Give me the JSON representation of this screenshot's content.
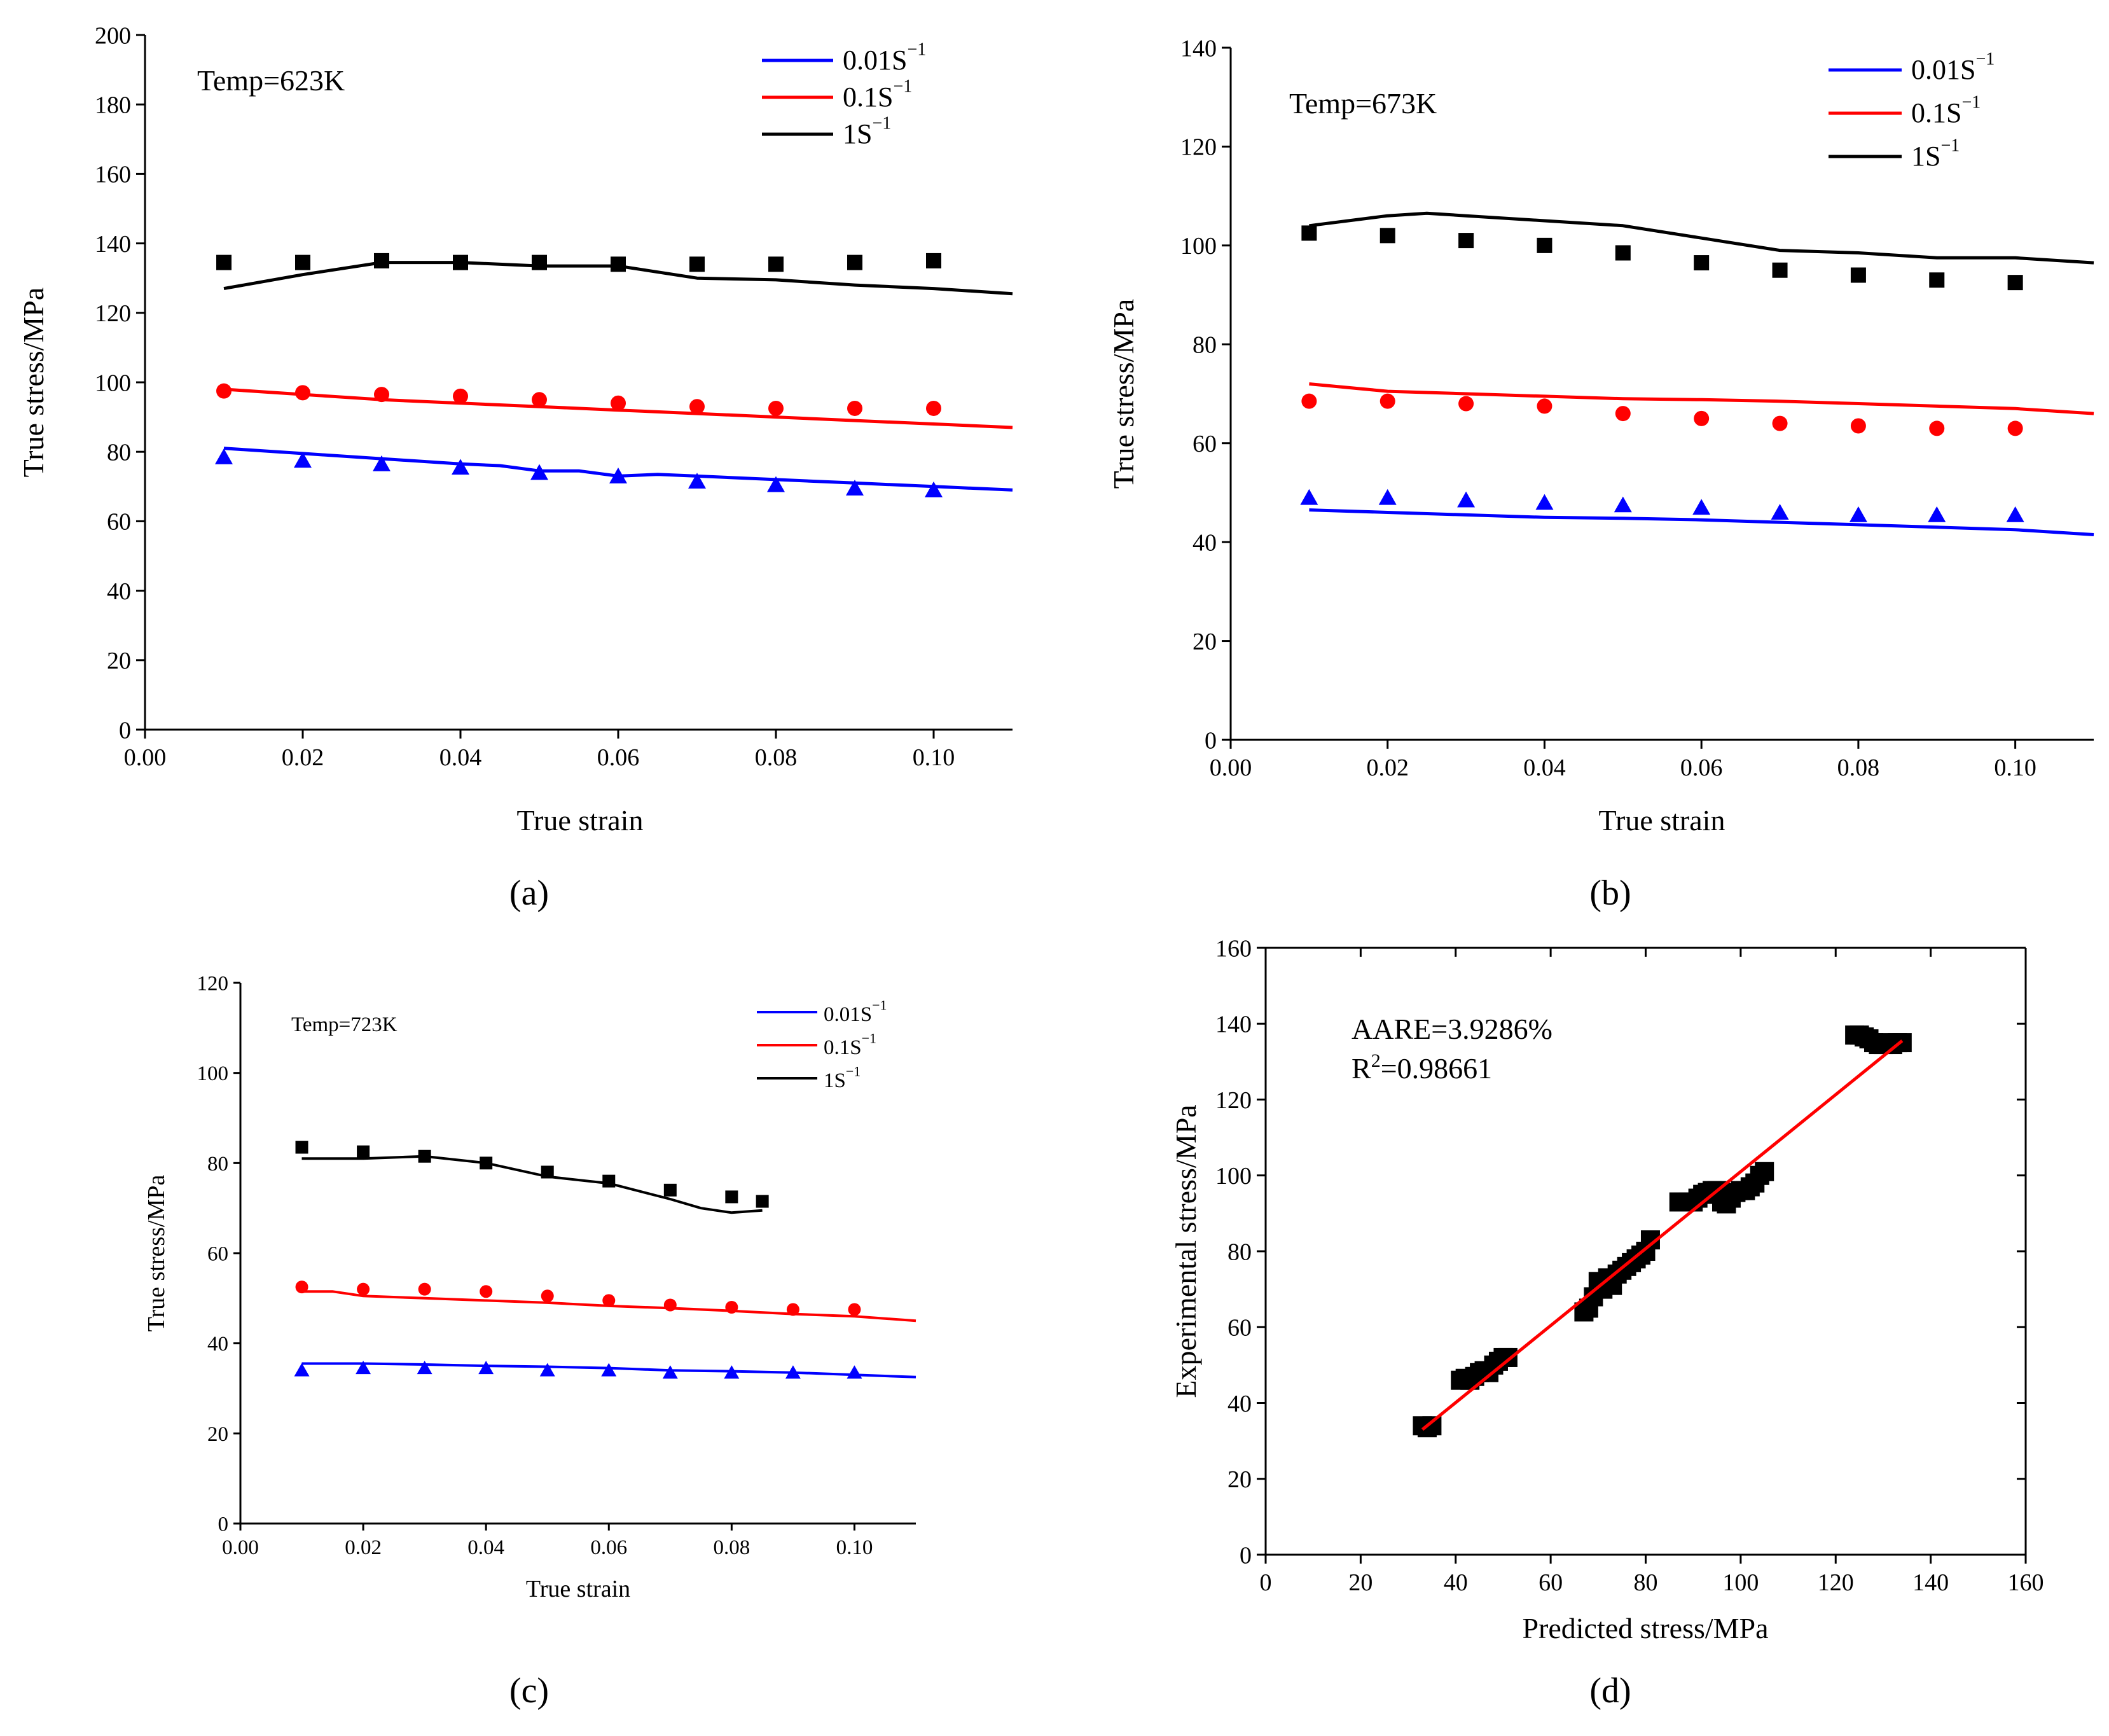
{
  "colors": {
    "blue": "#0000ff",
    "red": "#ff0000",
    "black": "#000000",
    "fit_red": "#ff0000"
  },
  "chart_data": [
    {
      "panel": "(a)",
      "type": "line",
      "annotation": "Temp=623K",
      "xlabel": "True strain",
      "ylabel": "True stress/MPa",
      "xlim": [
        0.0,
        0.11
      ],
      "ylim": [
        0,
        200
      ],
      "xticks": [
        "0.00",
        "0.02",
        "0.04",
        "0.06",
        "0.08",
        "0.10"
      ],
      "yticks": [
        "0",
        "20",
        "40",
        "60",
        "80",
        "100",
        "120",
        "140",
        "160",
        "180",
        "200"
      ],
      "legend": [
        {
          "base": "0.01S",
          "sup": "−1",
          "color": "blue"
        },
        {
          "base": "0.1S",
          "sup": "−1",
          "color": "red"
        },
        {
          "base": "1S",
          "sup": "−1",
          "color": "black"
        }
      ],
      "series": [
        {
          "name": "0.01S-1",
          "color": "blue",
          "marker": "triangle",
          "line_x": [
            0.01,
            0.02,
            0.03,
            0.04,
            0.045,
            0.05,
            0.055,
            0.06,
            0.065,
            0.07,
            0.08,
            0.09,
            0.1,
            0.11
          ],
          "line_y": [
            81,
            79.5,
            78,
            76.5,
            76,
            74.5,
            74.5,
            73,
            73.5,
            73,
            72,
            71,
            70,
            69
          ],
          "points_x": [
            0.01,
            0.02,
            0.03,
            0.04,
            0.05,
            0.06,
            0.07,
            0.08,
            0.09,
            0.1
          ],
          "points_y": [
            78.5,
            77.5,
            76.5,
            75.5,
            74,
            73,
            71.5,
            70.5,
            69.5,
            69
          ]
        },
        {
          "name": "0.1S-1",
          "color": "red",
          "marker": "circle",
          "line_x": [
            0.01,
            0.02,
            0.03,
            0.04,
            0.05,
            0.06,
            0.07,
            0.08,
            0.09,
            0.1,
            0.11
          ],
          "line_y": [
            98,
            96.5,
            95,
            94,
            93,
            92,
            91,
            90,
            89,
            88,
            87
          ],
          "points_x": [
            0.01,
            0.02,
            0.03,
            0.04,
            0.05,
            0.06,
            0.07,
            0.08,
            0.09,
            0.1
          ],
          "points_y": [
            97.5,
            97,
            96.5,
            96,
            95,
            94,
            93,
            92.5,
            92.5,
            92.5
          ]
        },
        {
          "name": "1S-1",
          "color": "black",
          "marker": "square",
          "line_x": [
            0.01,
            0.02,
            0.03,
            0.04,
            0.05,
            0.06,
            0.07,
            0.08,
            0.09,
            0.1,
            0.11
          ],
          "line_y": [
            127,
            131,
            134.5,
            134.5,
            133.5,
            133.5,
            130,
            129.5,
            128,
            127,
            125.5
          ],
          "points_x": [
            0.01,
            0.02,
            0.03,
            0.04,
            0.05,
            0.06,
            0.07,
            0.08,
            0.09,
            0.1
          ],
          "points_y": [
            134.5,
            134.5,
            135,
            134.5,
            134.5,
            134,
            134,
            134,
            134.5,
            135
          ]
        }
      ]
    },
    {
      "panel": "(b)",
      "type": "line",
      "annotation": "Temp=673K",
      "xlabel": "True strain",
      "ylabel": "True stress/MPa",
      "xlim": [
        0.0,
        0.11
      ],
      "ylim": [
        0,
        140
      ],
      "xticks": [
        "0.00",
        "0.02",
        "0.04",
        "0.06",
        "0.08",
        "0.10"
      ],
      "yticks": [
        "0",
        "20",
        "40",
        "60",
        "80",
        "100",
        "120",
        "140"
      ],
      "legend": [
        {
          "base": "0.01S",
          "sup": "−1",
          "color": "blue"
        },
        {
          "base": "0.1S",
          "sup": "−1",
          "color": "red"
        },
        {
          "base": "1S",
          "sup": "−1",
          "color": "black"
        }
      ],
      "series": [
        {
          "name": "0.01S-1",
          "color": "blue",
          "marker": "triangle",
          "line_x": [
            0.01,
            0.02,
            0.03,
            0.04,
            0.05,
            0.06,
            0.07,
            0.08,
            0.09,
            0.1,
            0.11
          ],
          "line_y": [
            46.5,
            46,
            45.5,
            45,
            44.8,
            44.5,
            44,
            43.5,
            43,
            42.5,
            41.5
          ],
          "points_x": [
            0.01,
            0.02,
            0.03,
            0.04,
            0.05,
            0.06,
            0.07,
            0.08,
            0.09,
            0.1
          ],
          "points_y": [
            49,
            49,
            48.5,
            48,
            47.5,
            47,
            46,
            45.5,
            45.5,
            45.5
          ]
        },
        {
          "name": "0.1S-1",
          "color": "red",
          "marker": "circle",
          "line_x": [
            0.01,
            0.02,
            0.03,
            0.04,
            0.05,
            0.06,
            0.07,
            0.08,
            0.09,
            0.1,
            0.11
          ],
          "line_y": [
            72,
            70.5,
            70,
            69.5,
            69,
            68.8,
            68.5,
            68,
            67.5,
            67,
            66
          ],
          "points_x": [
            0.01,
            0.02,
            0.03,
            0.04,
            0.05,
            0.06,
            0.07,
            0.08,
            0.09,
            0.1
          ],
          "points_y": [
            68.5,
            68.5,
            68,
            67.5,
            66,
            65,
            64,
            63.5,
            63,
            63
          ]
        },
        {
          "name": "1S-1",
          "color": "black",
          "marker": "square",
          "line_x": [
            0.01,
            0.02,
            0.025,
            0.03,
            0.04,
            0.05,
            0.06,
            0.07,
            0.08,
            0.09,
            0.1,
            0.11
          ],
          "line_y": [
            104,
            106,
            106.5,
            106,
            105,
            104,
            101.5,
            99,
            98.5,
            97.5,
            97.5,
            96.5
          ],
          "points_x": [
            0.01,
            0.02,
            0.03,
            0.04,
            0.05,
            0.06,
            0.07,
            0.08,
            0.09,
            0.1
          ],
          "points_y": [
            102.5,
            102,
            101,
            100,
            98.5,
            96.5,
            95,
            94,
            93,
            92.5
          ]
        }
      ]
    },
    {
      "panel": "(c)",
      "type": "line",
      "annotation": "Temp=723K",
      "xlabel": "True strain",
      "ylabel": "True stress/MPa",
      "xlim": [
        0.0,
        0.11
      ],
      "ylim": [
        0,
        120
      ],
      "xticks": [
        "0.00",
        "0.02",
        "0.04",
        "0.06",
        "0.08",
        "0.10"
      ],
      "yticks": [
        "0",
        "20",
        "40",
        "60",
        "80",
        "100",
        "120"
      ],
      "legend": [
        {
          "base": "0.01S",
          "sup": "−1",
          "color": "blue"
        },
        {
          "base": "0.1S",
          "sup": "−1",
          "color": "red"
        },
        {
          "base": "1S",
          "sup": "−1",
          "color": "black"
        }
      ],
      "series": [
        {
          "name": "0.01S-1",
          "color": "blue",
          "marker": "triangle",
          "line_x": [
            0.01,
            0.02,
            0.03,
            0.04,
            0.05,
            0.06,
            0.07,
            0.08,
            0.09,
            0.1,
            0.11
          ],
          "line_y": [
            35.5,
            35.5,
            35.3,
            35,
            34.8,
            34.5,
            34,
            33.8,
            33.5,
            33,
            32.5
          ],
          "points_x": [
            0.01,
            0.02,
            0.03,
            0.04,
            0.05,
            0.06,
            0.07,
            0.08,
            0.09,
            0.1
          ],
          "points_y": [
            34,
            34.5,
            34.5,
            34.5,
            34,
            34,
            33.5,
            33.5,
            33.5,
            33.5
          ]
        },
        {
          "name": "0.1S-1",
          "color": "red",
          "marker": "circle",
          "line_x": [
            0.01,
            0.015,
            0.02,
            0.03,
            0.04,
            0.05,
            0.06,
            0.07,
            0.08,
            0.09,
            0.1,
            0.11
          ],
          "line_y": [
            51.5,
            51.5,
            50.5,
            50,
            49.5,
            49,
            48.3,
            47.8,
            47.2,
            46.5,
            46,
            45
          ],
          "points_x": [
            0.01,
            0.02,
            0.03,
            0.04,
            0.05,
            0.06,
            0.07,
            0.08,
            0.09,
            0.1
          ],
          "points_y": [
            52.5,
            52,
            52,
            51.5,
            50.5,
            49.5,
            48.5,
            48,
            47.5,
            47.5
          ]
        },
        {
          "name": "1S-1",
          "color": "black",
          "marker": "square",
          "line_x": [
            0.01,
            0.02,
            0.03,
            0.04,
            0.05,
            0.06,
            0.07,
            0.075,
            0.08,
            0.085
          ],
          "line_y": [
            81,
            81,
            81.5,
            80,
            77,
            75.5,
            72,
            70,
            69,
            69.5
          ],
          "points_x": [
            0.01,
            0.02,
            0.03,
            0.04,
            0.05,
            0.06,
            0.07,
            0.08,
            0.085
          ],
          "points_y": [
            83.5,
            82.5,
            81.5,
            80,
            78,
            76,
            74,
            72.5,
            71.5
          ]
        }
      ]
    },
    {
      "panel": "(d)",
      "type": "scatter",
      "annotation_lines": [
        "AARE=3.9286%",
        "R²=0.98661"
      ],
      "aare": "AARE=3.9286%",
      "r2_base": "R",
      "r2_sup": "2",
      "r2_value": "=0.98661",
      "xlabel": "Predicted stress/MPa",
      "ylabel": "Experimental stress/MPa",
      "xlim": [
        0,
        160
      ],
      "ylim": [
        0,
        160
      ],
      "xticks": [
        "0",
        "20",
        "40",
        "60",
        "80",
        "100",
        "120",
        "140",
        "160"
      ],
      "yticks": [
        "0",
        "20",
        "40",
        "60",
        "80",
        "100",
        "120",
        "140",
        "160"
      ],
      "fit_line": {
        "x": [
          33,
          134
        ],
        "y": [
          33,
          135.5
        ]
      },
      "points_x": [
        33,
        34,
        35,
        41,
        42,
        43,
        44,
        45,
        46,
        47,
        48,
        49,
        50,
        51,
        67,
        68,
        69,
        70,
        71,
        72,
        73,
        74,
        75,
        76,
        77,
        78,
        79,
        80,
        81,
        87,
        88,
        89,
        90,
        91,
        92,
        93,
        94,
        95,
        96,
        97,
        98,
        99,
        100,
        101,
        102,
        103,
        104,
        105,
        124,
        125,
        126,
        127,
        128,
        129,
        130,
        131,
        132,
        133,
        134
      ],
      "points_y": [
        34,
        33.5,
        34,
        46,
        46.5,
        46,
        47,
        48,
        48.5,
        48,
        50,
        51,
        52,
        52,
        64,
        65,
        68,
        72,
        70,
        73,
        71,
        74,
        75,
        76,
        77,
        78,
        79,
        80,
        83,
        93,
        93,
        93,
        93,
        94,
        95,
        95.5,
        96,
        96,
        93,
        92.5,
        94,
        95.5,
        96,
        96,
        97,
        98,
        100,
        101,
        137,
        137,
        136.5,
        136,
        135,
        134.5,
        134.5,
        135,
        134.5,
        135,
        135
      ]
    }
  ]
}
